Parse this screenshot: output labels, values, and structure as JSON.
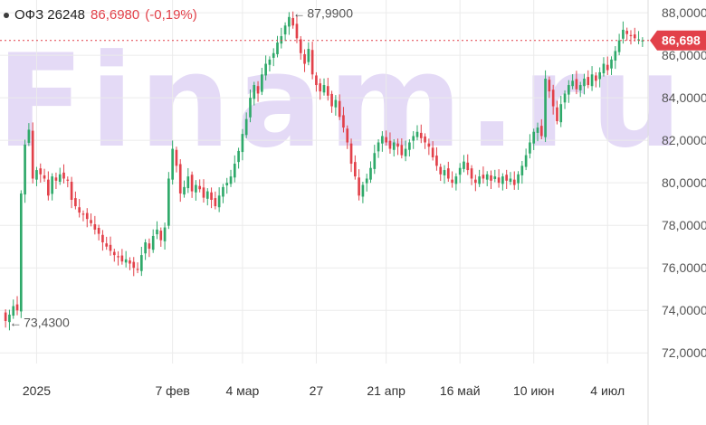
{
  "header": {
    "ticker": "ОФЗ 26248",
    "price": "86,6980",
    "change": "(-0,19%)"
  },
  "watermark": "Finam.ru",
  "colors": {
    "up": "#2fa96a",
    "down": "#e2414a",
    "grid": "#ebebeb",
    "watermark": "#e4daf6"
  },
  "chart_data": {
    "type": "candlestick",
    "ylim": [
      71.5,
      88.6
    ],
    "y_ticks": [
      72,
      74,
      76,
      78,
      80,
      82,
      84,
      86,
      88
    ],
    "y_tick_labels": [
      "72,0000",
      "74,0000",
      "76,0000",
      "78,0000",
      "80,0000",
      "82,0000",
      "84,0000",
      "86,0000",
      "88,0000"
    ],
    "x_ticks": [
      "2025",
      "7 фев",
      "4 мар",
      "27",
      "21 апр",
      "16 май",
      "10 июн",
      "4 июл"
    ],
    "x_tick_index": [
      8,
      43,
      61,
      80,
      98,
      117,
      136,
      155
    ],
    "last_price": 86.698,
    "last_price_label": "86,698",
    "annotations": [
      {
        "text": "87,9900",
        "index": 73,
        "value": 87.99
      },
      {
        "text": "73,4300",
        "index": 0,
        "value": 73.43
      }
    ],
    "closes": [
      73.5,
      73.8,
      74.2,
      74.0,
      79.5,
      81.8,
      82.5,
      80.2,
      80.6,
      80.4,
      80.2,
      79.4,
      80.3,
      80.1,
      80.4,
      80.2,
      80.1,
      79.2,
      78.9,
      78.6,
      78.5,
      78.3,
      78.1,
      77.8,
      77.6,
      77.2,
      77.0,
      76.8,
      76.6,
      76.5,
      76.3,
      76.4,
      76.2,
      76.0,
      75.9,
      76.6,
      77.2,
      76.9,
      77.5,
      77.8,
      77.3,
      77.9,
      80.2,
      81.6,
      80.8,
      79.5,
      79.8,
      80.3,
      79.6,
      79.9,
      79.7,
      79.3,
      79.6,
      79.2,
      78.9,
      79.4,
      79.8,
      80.0,
      80.3,
      80.9,
      81.5,
      82.3,
      83.0,
      84.0,
      84.6,
      84.2,
      85.1,
      85.6,
      85.8,
      86.1,
      86.6,
      86.9,
      87.4,
      87.8,
      87.4,
      86.8,
      86.1,
      85.6,
      86.3,
      85.1,
      84.6,
      84.3,
      84.6,
      84.1,
      83.6,
      83.9,
      83.1,
      82.6,
      81.9,
      80.9,
      80.3,
      79.4,
      79.9,
      80.2,
      80.7,
      81.4,
      81.9,
      82.2,
      81.9,
      81.6,
      81.9,
      81.7,
      81.3,
      81.6,
      81.9,
      82.2,
      82.4,
      82.1,
      81.9,
      81.7,
      81.2,
      80.8,
      80.4,
      80.6,
      80.2,
      80.0,
      80.3,
      80.7,
      81.0,
      80.6,
      80.2,
      80.0,
      80.3,
      80.2,
      80.4,
      80.1,
      80.3,
      80.0,
      80.3,
      80.1,
      80.2,
      79.9,
      80.4,
      80.8,
      81.3,
      81.9,
      82.4,
      82.6,
      82.2,
      84.9,
      84.3,
      83.6,
      82.9,
      83.7,
      84.2,
      84.6,
      84.8,
      84.4,
      84.6,
      84.9,
      84.6,
      85.1,
      84.8,
      85.2,
      85.6,
      85.3,
      85.8,
      86.2,
      86.7,
      87.2,
      87.0,
      86.9,
      86.8,
      86.75,
      86.7
    ]
  }
}
